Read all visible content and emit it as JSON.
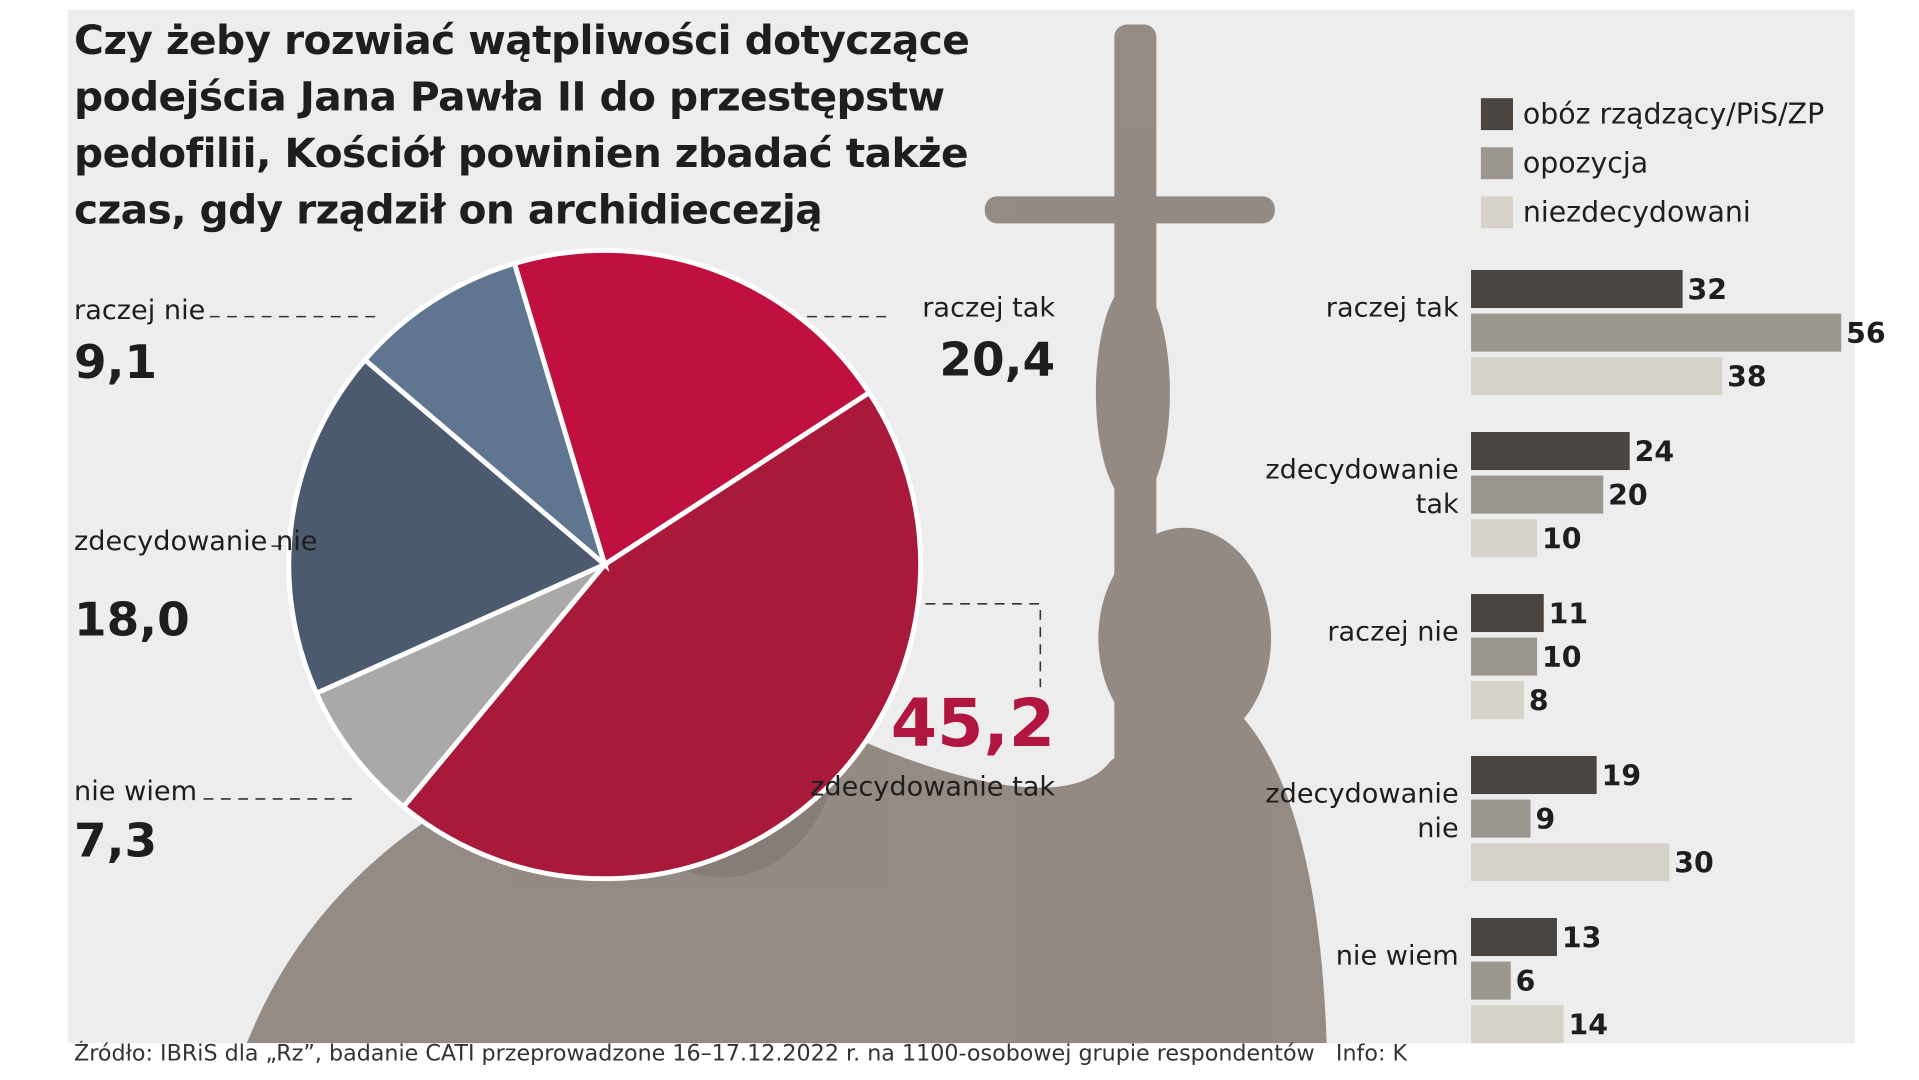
{
  "chart_data": [
    {
      "type": "pie",
      "title": "Czy żeby rozwiać wątpliwości dotyczące podejścia Jana Pawła II do przestępstw pedofilii, Kościół powinien zbadać także czas, gdy rządził on archidiecezją krakowską?",
      "categories": [
        "raczej tak",
        "zdecydowanie tak",
        "nie wiem",
        "zdecydowanie nie",
        "raczej nie"
      ],
      "values": [
        20.4,
        45.2,
        7.3,
        18.0,
        9.1
      ],
      "value_labels": [
        "20,4",
        "45,2",
        "7,3",
        "18,0",
        "9,1"
      ],
      "colors": [
        "#c0103f",
        "#a8193a",
        "#a9a9a9",
        "#4b5a6e",
        "#5f7590"
      ],
      "source": "Źródło: IBRiS dla „Rz”, badanie CATI przeprowadzone 16–17.12.2022 r. na 1100-osobowej grupie respondentów   Info: K"
    },
    {
      "type": "bar",
      "categories": [
        "raczej tak",
        "zdecydowanie tak",
        "raczej nie",
        "zdecydowanie nie",
        "nie wiem"
      ],
      "series": [
        {
          "name": "obóz rządzący/PiS/ZP",
          "color": "#4a4540",
          "values": [
            32,
            24,
            11,
            19,
            13
          ]
        },
        {
          "name": "opozycja",
          "color": "#9b978f",
          "values": [
            56,
            20,
            10,
            9,
            6
          ]
        },
        {
          "name": "niezdecydowani",
          "color": "#d6d2ca",
          "values": [
            38,
            10,
            8,
            30,
            14
          ]
        }
      ],
      "legend": "top-right"
    }
  ]
}
